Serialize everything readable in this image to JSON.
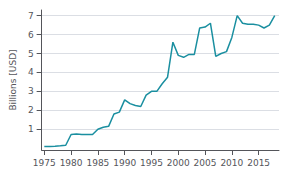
{
  "chart_data": {
    "type": "line",
    "ylabel": "Billions [USD]",
    "x": [
      1975,
      1976,
      1977,
      1978,
      1979,
      1980,
      1981,
      1982,
      1983,
      1984,
      1985,
      1986,
      1987,
      1988,
      1989,
      1990,
      1991,
      1992,
      1993,
      1994,
      1995,
      1996,
      1997,
      1998,
      1999,
      2000,
      2001,
      2002,
      2003,
      2004,
      2005,
      2006,
      2007,
      2008,
      2009,
      2010,
      2011,
      2012,
      2013,
      2014,
      2015,
      2016,
      2017,
      2018
    ],
    "values": [
      0.08,
      0.09,
      0.1,
      0.12,
      0.15,
      0.72,
      0.75,
      0.72,
      0.72,
      0.72,
      1.0,
      1.1,
      1.15,
      1.8,
      1.9,
      2.55,
      2.35,
      2.25,
      2.2,
      2.8,
      3.0,
      3.0,
      3.4,
      3.75,
      5.6,
      4.9,
      4.8,
      4.95,
      4.95,
      6.35,
      6.4,
      6.6,
      4.85,
      5.0,
      5.1,
      5.85,
      7.0,
      6.6,
      6.55,
      6.55,
      6.5,
      6.35,
      6.5,
      7.0
    ],
    "color": "#1a8fa0",
    "xlim": [
      1974.5,
      2018.8
    ],
    "ylim": [
      -0.1,
      7.3
    ],
    "xticks": [
      1975,
      1980,
      1985,
      1990,
      1995,
      2000,
      2005,
      2010,
      2015
    ],
    "yticks": [
      1,
      2,
      3,
      4,
      5,
      6,
      7
    ],
    "grid": true
  }
}
